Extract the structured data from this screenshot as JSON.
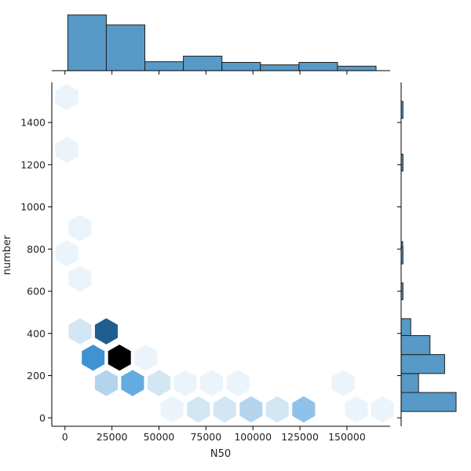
{
  "chart_data": {
    "type": "hexbin-joint",
    "xlabel": "N50",
    "ylabel": "number",
    "xlim": [
      -7000,
      173000
    ],
    "ylim": [
      -40,
      1590
    ],
    "x_ticks": [
      {
        "value": 0,
        "label": "0"
      },
      {
        "value": 25000,
        "label": "25000"
      },
      {
        "value": 50000,
        "label": "50000"
      },
      {
        "value": 75000,
        "label": "75000"
      },
      {
        "value": 100000,
        "label": "100000"
      },
      {
        "value": 125000,
        "label": "125000"
      },
      {
        "value": 150000,
        "label": "150000"
      }
    ],
    "y_ticks": [
      {
        "value": 0,
        "label": "0"
      },
      {
        "value": 200,
        "label": "200"
      },
      {
        "value": 400,
        "label": "400"
      },
      {
        "value": 600,
        "label": "600"
      },
      {
        "value": 800,
        "label": "800"
      },
      {
        "value": 1000,
        "label": "1000"
      },
      {
        "value": 1200,
        "label": "1200"
      },
      {
        "value": 1400,
        "label": "1400"
      }
    ],
    "hex_size_x": 7000,
    "hex_size_y": 62,
    "hexbins": [
      {
        "x": 1000,
        "y": 1520,
        "count": 1
      },
      {
        "x": 1000,
        "y": 1270,
        "count": 1
      },
      {
        "x": 8000,
        "y": 900,
        "count": 1
      },
      {
        "x": 1000,
        "y": 780,
        "count": 1
      },
      {
        "x": 8000,
        "y": 660,
        "count": 1
      },
      {
        "x": 8000,
        "y": 410,
        "count": 2
      },
      {
        "x": 22000,
        "y": 410,
        "count": 8
      },
      {
        "x": 15000,
        "y": 285,
        "count": 7
      },
      {
        "x": 29000,
        "y": 285,
        "count": 10
      },
      {
        "x": 43000,
        "y": 285,
        "count": 1
      },
      {
        "x": 22000,
        "y": 165,
        "count": 3
      },
      {
        "x": 36000,
        "y": 165,
        "count": 5
      },
      {
        "x": 50000,
        "y": 165,
        "count": 2
      },
      {
        "x": 64000,
        "y": 165,
        "count": 1
      },
      {
        "x": 78000,
        "y": 165,
        "count": 1
      },
      {
        "x": 92000,
        "y": 165,
        "count": 1
      },
      {
        "x": 148000,
        "y": 165,
        "count": 1
      },
      {
        "x": 57000,
        "y": 40,
        "count": 1
      },
      {
        "x": 71000,
        "y": 40,
        "count": 2
      },
      {
        "x": 85000,
        "y": 40,
        "count": 2
      },
      {
        "x": 99000,
        "y": 40,
        "count": 3
      },
      {
        "x": 113000,
        "y": 40,
        "count": 2
      },
      {
        "x": 127000,
        "y": 40,
        "count": 4
      },
      {
        "x": 155000,
        "y": 40,
        "count": 1
      },
      {
        "x": 169000,
        "y": 40,
        "count": 1
      }
    ],
    "top_histogram": {
      "bin_edges": [
        1500,
        22000,
        42500,
        63000,
        83500,
        104000,
        124500,
        145000,
        165500
      ],
      "counts": [
        25,
        20.5,
        4,
        6.5,
        3.7,
        2.6,
        3.7,
        2
      ]
    },
    "right_histogram": {
      "bin_edges": [
        30,
        120,
        210,
        300,
        390,
        470
      ],
      "counts": [
        12,
        3.8,
        9.5,
        6.3,
        2.1
      ]
    },
    "right_histogram_thin_bars": [
      {
        "y_from": 1500,
        "y_to": 1420,
        "count": 0.4
      },
      {
        "y_from": 1250,
        "y_to": 1170,
        "count": 0.4
      },
      {
        "y_from": 835,
        "y_to": 790,
        "count": 0.3
      },
      {
        "y_from": 810,
        "y_to": 730,
        "count": 0.4
      },
      {
        "y_from": 640,
        "y_to": 560,
        "count": 0.4
      }
    ],
    "colors": {
      "hist_fill": "#5799c7",
      "hist_edge": "#1f1f1f",
      "hex_palette": [
        "#ebf3fb",
        "#d2e6f4",
        "#b4d4ee",
        "#8fc1e9",
        "#64acdf",
        "#3f93d3",
        "#1f5f8f",
        "#0f3d5e",
        "#000000"
      ]
    }
  }
}
